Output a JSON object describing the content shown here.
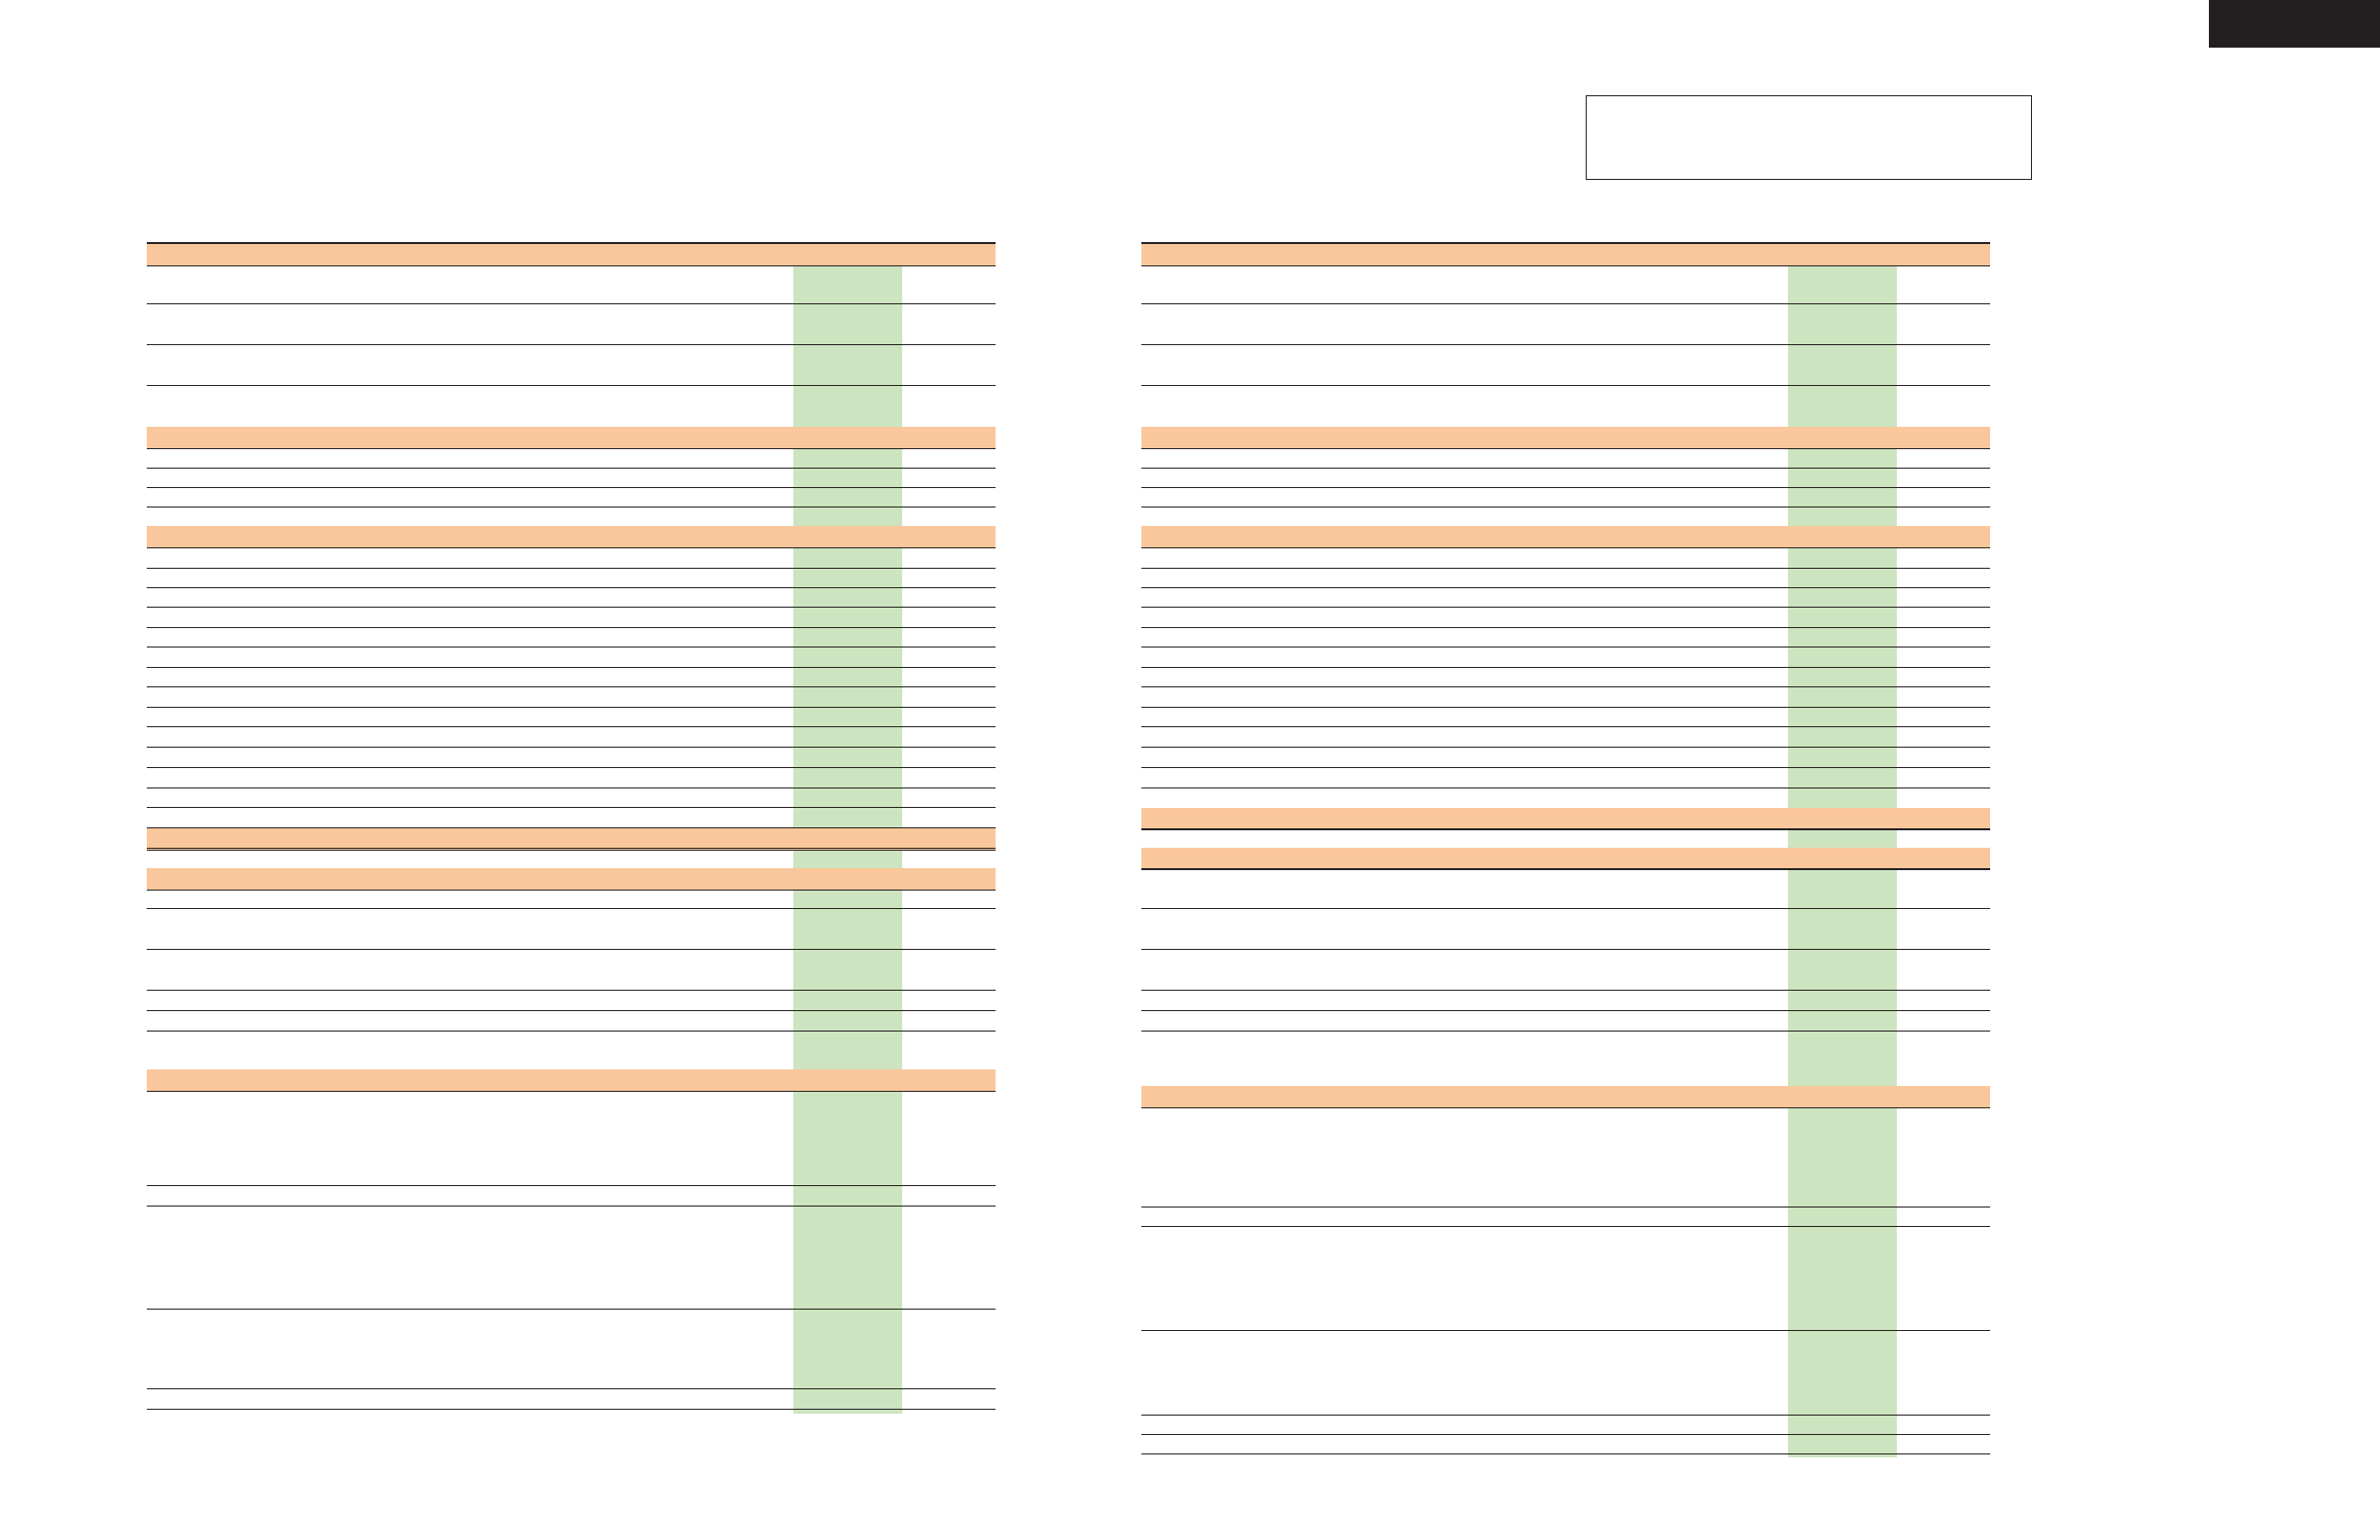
{
  "page": {
    "background": "#ffffff",
    "header_band_color": "#f9c79b",
    "value_column_color": "#cce4c0",
    "rule_color": "#231f20",
    "corner_tab_color": "#231f20"
  },
  "notice_box": {
    "text": ""
  },
  "left_table": {
    "sections": [
      {
        "header": "",
        "rows": [
          "",
          "",
          "",
          ""
        ]
      },
      {
        "header": "",
        "rows": [
          "",
          "",
          "",
          ""
        ]
      },
      {
        "header": "",
        "rows": [
          "",
          "",
          "",
          "",
          "",
          "",
          "",
          "",
          "",
          "",
          "",
          "",
          "",
          "",
          ""
        ]
      },
      {
        "header": "",
        "rows": [
          ""
        ]
      },
      {
        "header": "",
        "rows": [
          "",
          "",
          "",
          "",
          "",
          ""
        ]
      },
      {
        "header": "",
        "rows": [
          "",
          "",
          "",
          "",
          ""
        ]
      }
    ]
  },
  "right_table": {
    "sections": [
      {
        "header": "",
        "rows": [
          "",
          "",
          "",
          ""
        ]
      },
      {
        "header": "",
        "rows": [
          "",
          "",
          "",
          ""
        ]
      },
      {
        "header": "",
        "rows": [
          "",
          "",
          "",
          "",
          "",
          "",
          "",
          "",
          "",
          "",
          "",
          "",
          ""
        ]
      },
      {
        "header": "",
        "rows": [
          ""
        ]
      },
      {
        "header": "",
        "rows": [
          "",
          "",
          "",
          "",
          "",
          "",
          ""
        ]
      },
      {
        "header": "",
        "rows": [
          "",
          "",
          "",
          "",
          "",
          ""
        ]
      }
    ]
  }
}
